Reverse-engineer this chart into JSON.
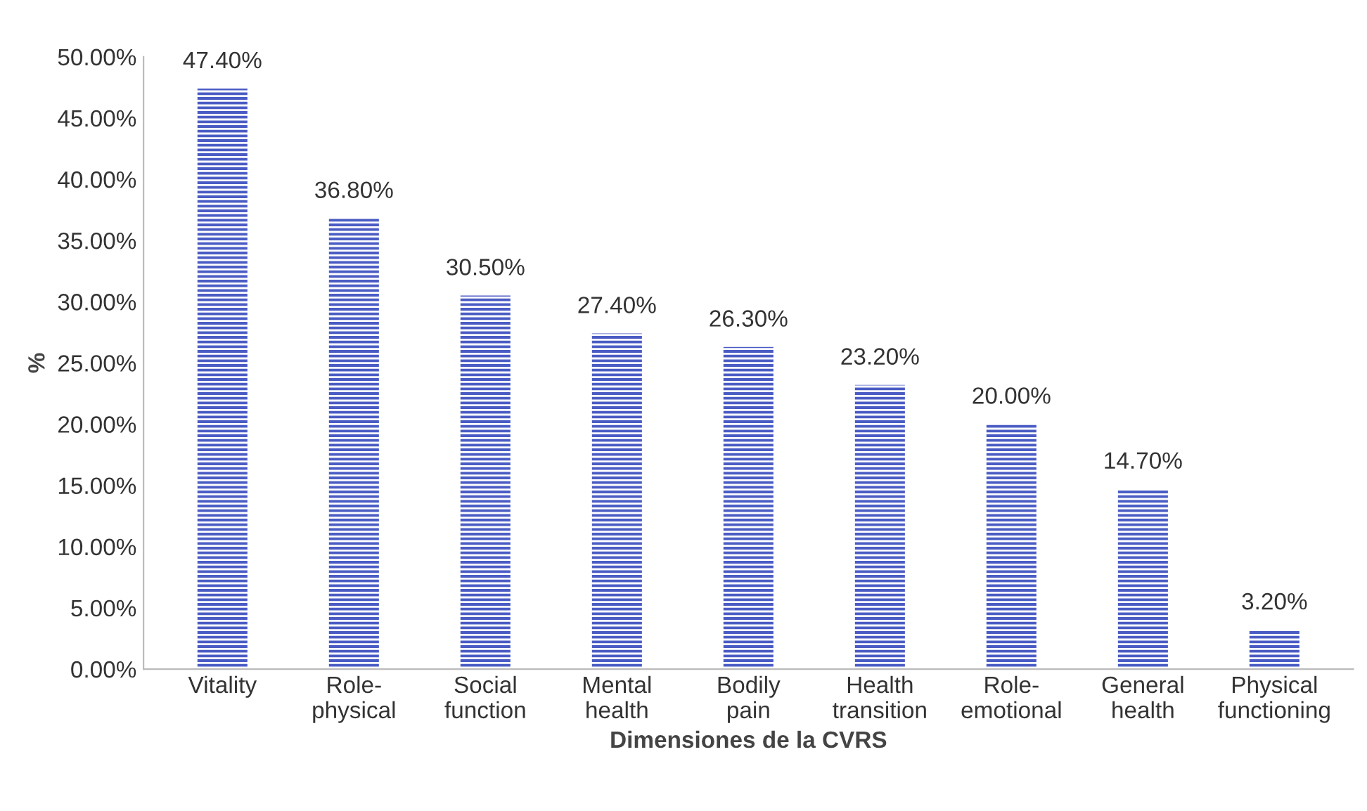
{
  "chart_data": {
    "type": "bar",
    "xlabel": "Dimensiones de la CVRS",
    "ylabel": "%",
    "categories": [
      "Vitality",
      "Role-\nphysical",
      "Social\nfunction",
      "Mental\nhealth",
      "Bodily\npain",
      "Health\ntransition",
      "Role-\nemotional",
      "General\nhealth",
      "Physical\nfunctioning"
    ],
    "values": [
      47.4,
      36.8,
      30.5,
      27.4,
      26.3,
      23.2,
      20.0,
      14.7,
      3.2
    ],
    "value_labels": [
      "47.40%",
      "36.80%",
      "30.50%",
      "27.40%",
      "26.30%",
      "23.20%",
      "20.00%",
      "14.70%",
      "3.20%"
    ],
    "color": "#4a5cc4",
    "ylim": [
      0,
      50
    ],
    "yticks": [
      {
        "value": 0,
        "label": "0.00%"
      },
      {
        "value": 5,
        "label": "5.00%"
      },
      {
        "value": 10,
        "label": "10.00%"
      },
      {
        "value": 15,
        "label": "15.00%"
      },
      {
        "value": 20,
        "label": "20.00%"
      },
      {
        "value": 25,
        "label": "25.00%"
      },
      {
        "value": 30,
        "label": "30.00%"
      },
      {
        "value": 35,
        "label": "35.00%"
      },
      {
        "value": 40,
        "label": "40.00%"
      },
      {
        "value": 45,
        "label": "45.00%"
      },
      {
        "value": 50,
        "label": "50.00%"
      }
    ],
    "grid": false,
    "legend": false
  }
}
